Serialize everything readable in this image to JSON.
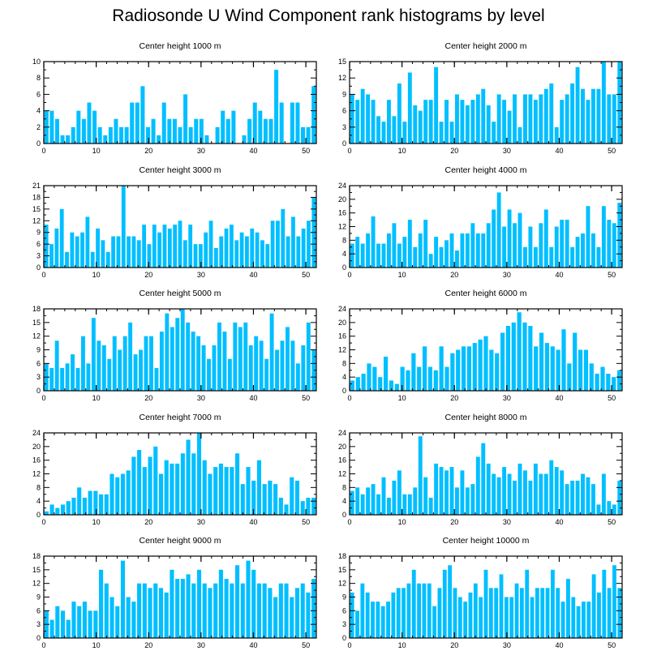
{
  "title": "Radiosonde U Wind Component rank histograms by level",
  "bar_color": "#00BFFF",
  "chart_data": [
    {
      "type": "bar",
      "title": "Center height 1000 m",
      "xlim": [
        0,
        52
      ],
      "xticks": [
        0,
        10,
        20,
        30,
        40,
        50
      ],
      "ylim": [
        0,
        10
      ],
      "yticks": [
        0,
        2,
        4,
        6,
        8,
        10
      ],
      "values": [
        4,
        4,
        3,
        1,
        1,
        2,
        4,
        3,
        5,
        4,
        2,
        1,
        2,
        3,
        2,
        2,
        5,
        5,
        7,
        2,
        3,
        1,
        5,
        3,
        3,
        2,
        6,
        2,
        3,
        3,
        1,
        0,
        2,
        4,
        3,
        4,
        0,
        1,
        3,
        5,
        4,
        3,
        3,
        9,
        5,
        0,
        5,
        5,
        2,
        2,
        7
      ]
    },
    {
      "type": "bar",
      "title": "Center height 2000 m",
      "xlim": [
        0,
        52
      ],
      "xticks": [
        0,
        10,
        20,
        30,
        40,
        50
      ],
      "ylim": [
        0,
        15
      ],
      "yticks": [
        0,
        3,
        6,
        9,
        12,
        15
      ],
      "values": [
        9,
        8,
        10,
        9,
        8,
        5,
        4,
        8,
        5,
        11,
        4,
        13,
        7,
        6,
        8,
        8,
        14,
        4,
        8,
        4,
        9,
        8,
        7,
        8,
        9,
        10,
        7,
        4,
        9,
        8,
        6,
        9,
        3,
        9,
        9,
        8,
        9,
        10,
        11,
        3,
        8,
        9,
        11,
        14,
        10,
        8,
        10,
        10,
        15,
        9,
        9,
        15
      ]
    },
    {
      "type": "bar",
      "title": "Center height 3000 m",
      "xlim": [
        0,
        52
      ],
      "xticks": [
        0,
        10,
        20,
        30,
        40,
        50
      ],
      "ylim": [
        0,
        21
      ],
      "yticks": [
        0,
        3,
        6,
        9,
        12,
        15,
        18,
        21
      ],
      "values": [
        11,
        6,
        10,
        15,
        4,
        9,
        8,
        9,
        13,
        4,
        10,
        7,
        4,
        8,
        8,
        21,
        8,
        8,
        7,
        11,
        6,
        11,
        9,
        11,
        10,
        11,
        12,
        7,
        11,
        6,
        6,
        9,
        12,
        5,
        8,
        10,
        11,
        7,
        9,
        8,
        10,
        9,
        7,
        6,
        12,
        12,
        15,
        8,
        13,
        8,
        10,
        12,
        18
      ]
    },
    {
      "type": "bar",
      "title": "Center height 4000 m",
      "xlim": [
        0,
        52
      ],
      "xticks": [
        0,
        10,
        20,
        30,
        40,
        50
      ],
      "ylim": [
        0,
        24
      ],
      "yticks": [
        0,
        4,
        8,
        12,
        16,
        20,
        24
      ],
      "values": [
        7,
        9,
        7,
        10,
        15,
        7,
        7,
        10,
        13,
        7,
        9,
        14,
        6,
        10,
        14,
        4,
        9,
        6,
        8,
        10,
        5,
        10,
        10,
        13,
        10,
        10,
        13,
        17,
        22,
        12,
        17,
        13,
        16,
        6,
        12,
        6,
        13,
        17,
        6,
        12,
        14,
        14,
        6,
        9,
        10,
        18,
        10,
        6,
        18,
        14,
        13,
        19
      ]
    },
    {
      "type": "bar",
      "title": "Center height 5000 m",
      "xlim": [
        0,
        52
      ],
      "xticks": [
        0,
        10,
        20,
        30,
        40,
        50
      ],
      "ylim": [
        0,
        18
      ],
      "yticks": [
        0,
        3,
        6,
        9,
        12,
        15,
        18
      ],
      "values": [
        6,
        5,
        11,
        5,
        6,
        8,
        5,
        12,
        6,
        16,
        11,
        10,
        7,
        12,
        9,
        12,
        15,
        8,
        9,
        12,
        12,
        5,
        13,
        17,
        14,
        16,
        18,
        15,
        13,
        12,
        10,
        7,
        10,
        15,
        13,
        7,
        15,
        14,
        15,
        10,
        12,
        11,
        7,
        17,
        9,
        11,
        14,
        11,
        6,
        10,
        15,
        9
      ]
    },
    {
      "type": "bar",
      "title": "Center height 6000 m",
      "xlim": [
        0,
        52
      ],
      "xticks": [
        0,
        10,
        20,
        30,
        40,
        50
      ],
      "ylim": [
        0,
        24
      ],
      "yticks": [
        0,
        4,
        8,
        12,
        16,
        20,
        24
      ],
      "values": [
        3,
        4,
        5,
        8,
        7,
        4,
        10,
        3,
        2,
        7,
        6,
        11,
        7,
        13,
        7,
        6,
        13,
        7,
        11,
        12,
        13,
        13,
        14,
        15,
        16,
        12,
        11,
        17,
        19,
        20,
        23,
        20,
        19,
        13,
        17,
        14,
        13,
        12,
        18,
        8,
        17,
        12,
        12,
        8,
        5,
        7,
        5,
        4,
        6
      ]
    },
    {
      "type": "bar",
      "title": "Center height 7000 m",
      "xlim": [
        0,
        52
      ],
      "xticks": [
        0,
        10,
        20,
        30,
        40,
        50
      ],
      "ylim": [
        0,
        24
      ],
      "yticks": [
        0,
        4,
        8,
        12,
        16,
        20,
        24
      ],
      "values": [
        1,
        3,
        2,
        3,
        4,
        5,
        8,
        5,
        7,
        7,
        6,
        6,
        12,
        11,
        12,
        13,
        17,
        19,
        14,
        17,
        20,
        12,
        16,
        15,
        15,
        18,
        22,
        18,
        24,
        16,
        12,
        14,
        15,
        14,
        14,
        18,
        9,
        14,
        10,
        16,
        9,
        10,
        9,
        5,
        3,
        11,
        10,
        4,
        5,
        5
      ]
    },
    {
      "type": "bar",
      "title": "Center height 8000 m",
      "xlim": [
        0,
        52
      ],
      "xticks": [
        0,
        10,
        20,
        30,
        40,
        50
      ],
      "ylim": [
        0,
        24
      ],
      "yticks": [
        0,
        4,
        8,
        12,
        16,
        20,
        24
      ],
      "values": [
        7,
        8,
        6,
        8,
        9,
        6,
        11,
        5,
        10,
        13,
        6,
        6,
        8,
        23,
        11,
        5,
        15,
        14,
        13,
        14,
        8,
        13,
        8,
        9,
        17,
        21,
        15,
        12,
        11,
        14,
        12,
        10,
        15,
        13,
        10,
        15,
        12,
        12,
        16,
        14,
        13,
        9,
        10,
        10,
        12,
        11,
        9,
        3,
        12,
        4,
        3,
        10
      ]
    },
    {
      "type": "bar",
      "title": "Center height 9000 m",
      "xlim": [
        0,
        52
      ],
      "xticks": [
        0,
        10,
        20,
        30,
        40,
        50
      ],
      "ylim": [
        0,
        18
      ],
      "yticks": [
        0,
        3,
        6,
        9,
        12,
        15,
        18
      ],
      "values": [
        6,
        4,
        7,
        6,
        4,
        8,
        7,
        8,
        6,
        6,
        15,
        12,
        9,
        7,
        17,
        9,
        8,
        12,
        12,
        11,
        12,
        11,
        10,
        15,
        13,
        13,
        14,
        12,
        15,
        12,
        11,
        12,
        15,
        13,
        12,
        16,
        12,
        17,
        15,
        12,
        12,
        11,
        9,
        12,
        12,
        9,
        11,
        12,
        10,
        13
      ]
    },
    {
      "type": "bar",
      "title": "Center height 10000 m",
      "xlim": [
        0,
        52
      ],
      "xticks": [
        0,
        10,
        20,
        30,
        40,
        50
      ],
      "ylim": [
        0,
        18
      ],
      "yticks": [
        0,
        3,
        6,
        9,
        12,
        15,
        18
      ],
      "values": [
        10,
        6,
        12,
        10,
        8,
        8,
        7,
        8,
        10,
        11,
        11,
        12,
        15,
        12,
        12,
        12,
        7,
        11,
        15,
        16,
        11,
        9,
        8,
        10,
        12,
        9,
        15,
        11,
        11,
        14,
        9,
        9,
        12,
        11,
        15,
        9,
        11,
        11,
        11,
        15,
        11,
        8,
        13,
        9,
        7,
        8,
        8,
        14,
        10,
        15,
        11,
        16,
        11
      ]
    }
  ]
}
